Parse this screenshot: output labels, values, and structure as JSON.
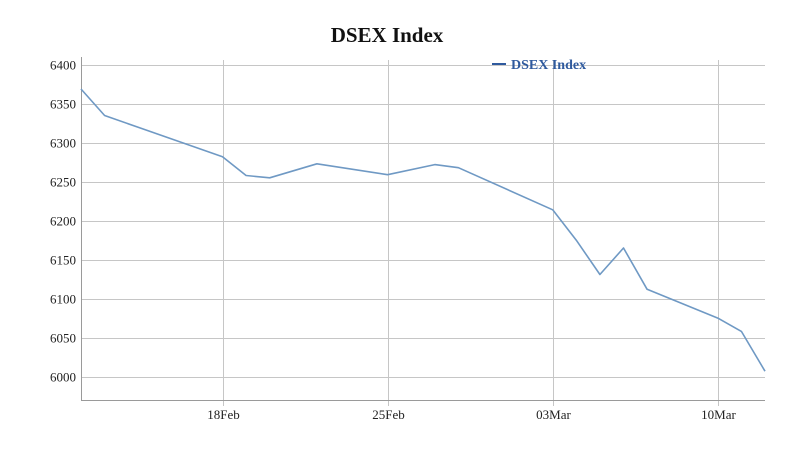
{
  "colors": {
    "series": "#6f99c4",
    "legend_text": "#2f5a9e",
    "grid": "#c6c6c6",
    "axis": "#9a9a9a"
  },
  "chart_data": {
    "type": "line",
    "title": "DSEX Index",
    "xlabel": "",
    "ylabel": "",
    "x_type": "date",
    "xlim": [
      "2024-02-12",
      "2024-03-12"
    ],
    "ylim": [
      5970,
      6410
    ],
    "y_ticks": [
      6000,
      6050,
      6100,
      6150,
      6200,
      6250,
      6300,
      6350,
      6400
    ],
    "x_ticks": [
      {
        "date": "2024-02-18",
        "label": "18Feb"
      },
      {
        "date": "2024-02-25",
        "label": "25Feb"
      },
      {
        "date": "2024-03-03",
        "label": "03Mar"
      },
      {
        "date": "2024-03-10",
        "label": "10Mar"
      }
    ],
    "grid": true,
    "legend": {
      "position": "top-right"
    },
    "series": [
      {
        "name": "DSEX Index",
        "points": [
          {
            "x": "2024-02-12",
            "y": 6369
          },
          {
            "x": "2024-02-13",
            "y": 6335
          },
          {
            "x": "2024-02-18",
            "y": 6282
          },
          {
            "x": "2024-02-19",
            "y": 6258
          },
          {
            "x": "2024-02-20",
            "y": 6255
          },
          {
            "x": "2024-02-22",
            "y": 6273
          },
          {
            "x": "2024-02-25",
            "y": 6259
          },
          {
            "x": "2024-02-27",
            "y": 6272
          },
          {
            "x": "2024-02-28",
            "y": 6268
          },
          {
            "x": "2024-03-03",
            "y": 6214
          },
          {
            "x": "2024-03-04",
            "y": 6175
          },
          {
            "x": "2024-03-05",
            "y": 6131
          },
          {
            "x": "2024-03-06",
            "y": 6165
          },
          {
            "x": "2024-03-07",
            "y": 6112
          },
          {
            "x": "2024-03-10",
            "y": 6075
          },
          {
            "x": "2024-03-11",
            "y": 6058
          },
          {
            "x": "2024-03-12",
            "y": 6007
          }
        ]
      }
    ]
  }
}
